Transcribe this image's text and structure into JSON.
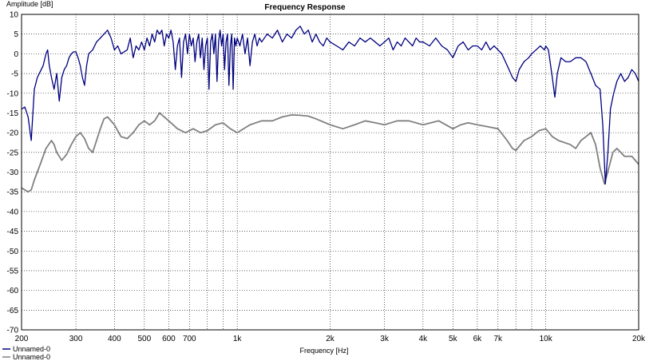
{
  "chart_data": {
    "type": "line",
    "title": "Frequency Response",
    "xlabel": "Frequency [Hz]",
    "ylabel": "Amplitude [dB]",
    "xscale": "log",
    "xlim": [
      200,
      20000
    ],
    "ylim": [
      -70,
      10
    ],
    "grid": true,
    "x_ticks": [
      {
        "value": 200,
        "label": "200"
      },
      {
        "value": 300,
        "label": "300"
      },
      {
        "value": 400,
        "label": "400"
      },
      {
        "value": 500,
        "label": "500"
      },
      {
        "value": 600,
        "label": "600"
      },
      {
        "value": 700,
        "label": "700"
      },
      {
        "value": 1000,
        "label": "1k"
      },
      {
        "value": 2000,
        "label": "2k"
      },
      {
        "value": 3000,
        "label": "3k"
      },
      {
        "value": 4000,
        "label": "4k"
      },
      {
        "value": 5000,
        "label": "5k"
      },
      {
        "value": 6000,
        "label": "6k"
      },
      {
        "value": 7000,
        "label": "7k"
      },
      {
        "value": 10000,
        "label": "10k"
      },
      {
        "value": 20000,
        "label": "20k"
      }
    ],
    "x_minor_ticks": [
      800,
      900,
      8000,
      9000
    ],
    "y_ticks": [
      10,
      5,
      0,
      -5,
      -10,
      -15,
      -20,
      -25,
      -30,
      -35,
      -40,
      -45,
      -50,
      -55,
      -60,
      -65,
      -70
    ],
    "legend_position": "bottom-left",
    "series": [
      {
        "name": "Unnamed-0",
        "color": "#000080",
        "points": [
          [
            200,
            -14
          ],
          [
            205,
            -13.5
          ],
          [
            210,
            -16
          ],
          [
            215,
            -22
          ],
          [
            220,
            -9
          ],
          [
            225,
            -6
          ],
          [
            230,
            -4.5
          ],
          [
            235,
            -3
          ],
          [
            240,
            0
          ],
          [
            243,
            1
          ],
          [
            246,
            -3
          ],
          [
            250,
            -6
          ],
          [
            255,
            -9
          ],
          [
            260,
            -5
          ],
          [
            265,
            -12
          ],
          [
            270,
            -6
          ],
          [
            275,
            -4
          ],
          [
            280,
            -3
          ],
          [
            285,
            -1
          ],
          [
            290,
            0
          ],
          [
            295,
            0.5
          ],
          [
            300,
            0.5
          ],
          [
            305,
            -1
          ],
          [
            310,
            -3
          ],
          [
            315,
            -6
          ],
          [
            320,
            -8
          ],
          [
            325,
            -3
          ],
          [
            330,
            0
          ],
          [
            340,
            1
          ],
          [
            350,
            3
          ],
          [
            360,
            4
          ],
          [
            370,
            5
          ],
          [
            380,
            6
          ],
          [
            390,
            4
          ],
          [
            400,
            1
          ],
          [
            410,
            2
          ],
          [
            420,
            0
          ],
          [
            430,
            0.5
          ],
          [
            440,
            1
          ],
          [
            450,
            4
          ],
          [
            460,
            -1
          ],
          [
            470,
            2
          ],
          [
            480,
            1
          ],
          [
            490,
            3
          ],
          [
            500,
            1
          ],
          [
            510,
            4
          ],
          [
            520,
            2
          ],
          [
            530,
            5
          ],
          [
            540,
            3
          ],
          [
            550,
            6
          ],
          [
            560,
            5
          ],
          [
            570,
            6
          ],
          [
            580,
            2
          ],
          [
            590,
            5
          ],
          [
            600,
            4
          ],
          [
            610,
            6
          ],
          [
            620,
            3
          ],
          [
            630,
            -4
          ],
          [
            640,
            2
          ],
          [
            650,
            4
          ],
          [
            660,
            -6
          ],
          [
            670,
            3
          ],
          [
            680,
            5
          ],
          [
            690,
            0
          ],
          [
            700,
            5
          ],
          [
            710,
            2
          ],
          [
            720,
            4
          ],
          [
            730,
            -2
          ],
          [
            740,
            3
          ],
          [
            750,
            5
          ],
          [
            760,
            -1
          ],
          [
            770,
            4
          ],
          [
            780,
            -4
          ],
          [
            790,
            2
          ],
          [
            800,
            4
          ],
          [
            810,
            -9
          ],
          [
            820,
            3
          ],
          [
            830,
            5
          ],
          [
            840,
            0
          ],
          [
            850,
            5
          ],
          [
            860,
            -7
          ],
          [
            870,
            3
          ],
          [
            880,
            6
          ],
          [
            890,
            2
          ],
          [
            900,
            5
          ],
          [
            910,
            -4
          ],
          [
            920,
            3
          ],
          [
            930,
            5
          ],
          [
            940,
            -8
          ],
          [
            950,
            2
          ],
          [
            960,
            5
          ],
          [
            970,
            -9
          ],
          [
            980,
            4
          ],
          [
            990,
            2
          ],
          [
            1000,
            4
          ],
          [
            1020,
            2
          ],
          [
            1040,
            5
          ],
          [
            1060,
            0
          ],
          [
            1080,
            4
          ],
          [
            1100,
            -3
          ],
          [
            1120,
            3
          ],
          [
            1140,
            5
          ],
          [
            1160,
            2
          ],
          [
            1180,
            4
          ],
          [
            1200,
            3
          ],
          [
            1250,
            5
          ],
          [
            1300,
            4
          ],
          [
            1350,
            6
          ],
          [
            1400,
            3
          ],
          [
            1450,
            5
          ],
          [
            1500,
            4
          ],
          [
            1550,
            6
          ],
          [
            1600,
            7
          ],
          [
            1650,
            5
          ],
          [
            1700,
            6
          ],
          [
            1750,
            3
          ],
          [
            1800,
            5
          ],
          [
            1850,
            3
          ],
          [
            1900,
            2
          ],
          [
            1950,
            4
          ],
          [
            2000,
            3
          ],
          [
            2100,
            2
          ],
          [
            2200,
            1
          ],
          [
            2300,
            3
          ],
          [
            2400,
            2
          ],
          [
            2500,
            4
          ],
          [
            2600,
            3
          ],
          [
            2700,
            4
          ],
          [
            2800,
            3
          ],
          [
            2900,
            2
          ],
          [
            3000,
            3
          ],
          [
            3100,
            4
          ],
          [
            3200,
            1
          ],
          [
            3300,
            3
          ],
          [
            3400,
            2
          ],
          [
            3500,
            4
          ],
          [
            3600,
            3
          ],
          [
            3700,
            2
          ],
          [
            3800,
            4
          ],
          [
            3900,
            3
          ],
          [
            4000,
            3
          ],
          [
            4200,
            2
          ],
          [
            4400,
            4
          ],
          [
            4600,
            2
          ],
          [
            4800,
            1
          ],
          [
            5000,
            -1
          ],
          [
            5200,
            2
          ],
          [
            5400,
            3
          ],
          [
            5600,
            1
          ],
          [
            5800,
            2
          ],
          [
            6000,
            2
          ],
          [
            6200,
            1
          ],
          [
            6400,
            3
          ],
          [
            6600,
            1
          ],
          [
            6800,
            2
          ],
          [
            7000,
            1
          ],
          [
            7200,
            0
          ],
          [
            7400,
            -2
          ],
          [
            7600,
            -4
          ],
          [
            7800,
            -6
          ],
          [
            8000,
            -7
          ],
          [
            8200,
            -4
          ],
          [
            8500,
            -2
          ],
          [
            8800,
            -1
          ],
          [
            9000,
            0
          ],
          [
            9300,
            1
          ],
          [
            9600,
            2
          ],
          [
            9900,
            1
          ],
          [
            10000,
            2
          ],
          [
            10200,
            1
          ],
          [
            10500,
            -6
          ],
          [
            10700,
            -11
          ],
          [
            10900,
            -5
          ],
          [
            11200,
            -1
          ],
          [
            11600,
            -2
          ],
          [
            12000,
            -2
          ],
          [
            12500,
            -1
          ],
          [
            13000,
            -1
          ],
          [
            13500,
            -2
          ],
          [
            14000,
            -5
          ],
          [
            14500,
            -8
          ],
          [
            15000,
            -9
          ],
          [
            15300,
            -18
          ],
          [
            15600,
            -33
          ],
          [
            15900,
            -25
          ],
          [
            16200,
            -14
          ],
          [
            16600,
            -10
          ],
          [
            17000,
            -7
          ],
          [
            17500,
            -5
          ],
          [
            18000,
            -7
          ],
          [
            18500,
            -6
          ],
          [
            19000,
            -4
          ],
          [
            19500,
            -5
          ],
          [
            20000,
            -7
          ]
        ]
      },
      {
        "name": "Unnamed-0",
        "color": "#808080",
        "points": [
          [
            200,
            -34
          ],
          [
            210,
            -35
          ],
          [
            215,
            -34.5
          ],
          [
            220,
            -32
          ],
          [
            230,
            -28
          ],
          [
            240,
            -24
          ],
          [
            250,
            -22
          ],
          [
            255,
            -23
          ],
          [
            260,
            -25
          ],
          [
            270,
            -27
          ],
          [
            280,
            -25.5
          ],
          [
            290,
            -23
          ],
          [
            300,
            -21
          ],
          [
            310,
            -20
          ],
          [
            320,
            -21.5
          ],
          [
            330,
            -24
          ],
          [
            340,
            -25
          ],
          [
            350,
            -22
          ],
          [
            360,
            -19
          ],
          [
            370,
            -16.5
          ],
          [
            380,
            -16
          ],
          [
            400,
            -18
          ],
          [
            420,
            -21
          ],
          [
            440,
            -21.5
          ],
          [
            460,
            -20
          ],
          [
            480,
            -18
          ],
          [
            500,
            -17
          ],
          [
            520,
            -18
          ],
          [
            540,
            -17
          ],
          [
            560,
            -15
          ],
          [
            580,
            -16
          ],
          [
            600,
            -17
          ],
          [
            640,
            -19
          ],
          [
            680,
            -20
          ],
          [
            720,
            -19
          ],
          [
            760,
            -20
          ],
          [
            800,
            -19.5
          ],
          [
            850,
            -18
          ],
          [
            900,
            -17.5
          ],
          [
            950,
            -19
          ],
          [
            1000,
            -20
          ],
          [
            1100,
            -18
          ],
          [
            1200,
            -17
          ],
          [
            1300,
            -17
          ],
          [
            1400,
            -16
          ],
          [
            1500,
            -15.5
          ],
          [
            1600,
            -15.6
          ],
          [
            1700,
            -15.8
          ],
          [
            1800,
            -16.5
          ],
          [
            2000,
            -18
          ],
          [
            2200,
            -19
          ],
          [
            2400,
            -18
          ],
          [
            2600,
            -17
          ],
          [
            2800,
            -17.5
          ],
          [
            3000,
            -18
          ],
          [
            3300,
            -17
          ],
          [
            3600,
            -17
          ],
          [
            4000,
            -18
          ],
          [
            4500,
            -17
          ],
          [
            5000,
            -19
          ],
          [
            5300,
            -18
          ],
          [
            5600,
            -17.5
          ],
          [
            6000,
            -18
          ],
          [
            6500,
            -18.5
          ],
          [
            7000,
            -19
          ],
          [
            7500,
            -22
          ],
          [
            7800,
            -24
          ],
          [
            8000,
            -24.5
          ],
          [
            8500,
            -22
          ],
          [
            9000,
            -21
          ],
          [
            9500,
            -19.5
          ],
          [
            10000,
            -19
          ],
          [
            10500,
            -21
          ],
          [
            11000,
            -22
          ],
          [
            12000,
            -23
          ],
          [
            12500,
            -24
          ],
          [
            13000,
            -22
          ],
          [
            13500,
            -21
          ],
          [
            14000,
            -20
          ],
          [
            14500,
            -23
          ],
          [
            15000,
            -29
          ],
          [
            15500,
            -33
          ],
          [
            16000,
            -29
          ],
          [
            16500,
            -25
          ],
          [
            17000,
            -24
          ],
          [
            17500,
            -25
          ],
          [
            18000,
            -26
          ],
          [
            19000,
            -26
          ],
          [
            20000,
            -28
          ]
        ]
      }
    ]
  }
}
